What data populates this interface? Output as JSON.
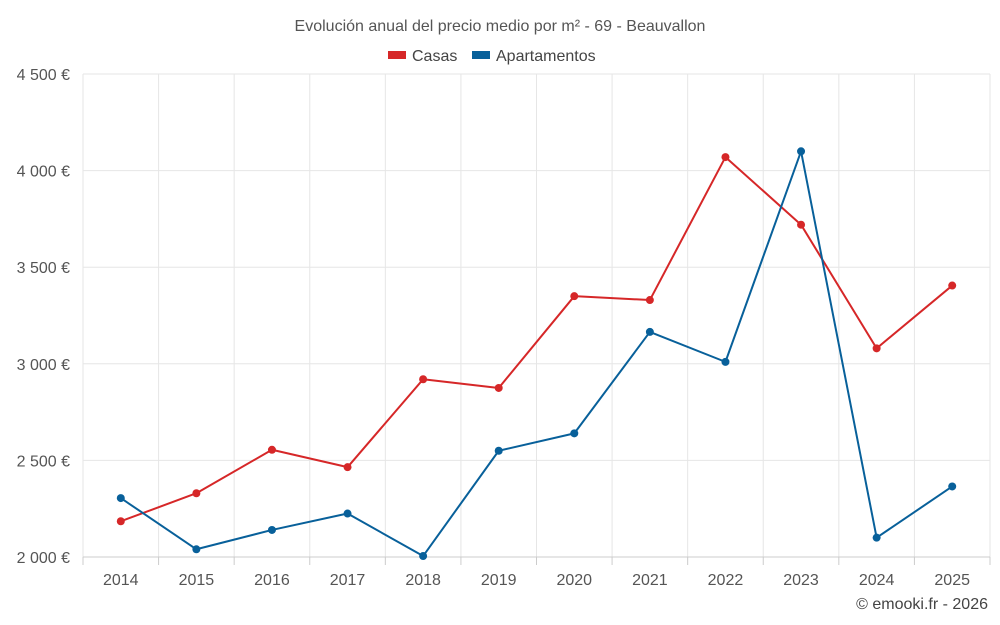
{
  "chart_data": {
    "type": "line",
    "title": "Evolución anual del precio medio por m² - 69 - Beauvallon",
    "categories": [
      "2014",
      "2015",
      "2016",
      "2017",
      "2018",
      "2019",
      "2020",
      "2021",
      "2022",
      "2023",
      "2024",
      "2025"
    ],
    "series": [
      {
        "name": "Casas",
        "color": "#d62728",
        "values": [
          2185,
          2330,
          2555,
          2465,
          2920,
          2875,
          3350,
          3330,
          4070,
          3720,
          3080,
          3405
        ]
      },
      {
        "name": "Apartamentos",
        "color": "#08609a",
        "values": [
          2305,
          2040,
          2140,
          2225,
          2005,
          2550,
          2640,
          3165,
          3010,
          4100,
          2100,
          2365
        ]
      }
    ],
    "ylim": [
      2000,
      4500
    ],
    "yticks": [
      2000,
      2500,
      3000,
      3500,
      4000,
      4500
    ],
    "ytick_labels": [
      "2 000 €",
      "2 500 €",
      "3 000 €",
      "3 500 €",
      "4 000 €",
      "4 500 €"
    ],
    "xlabel": "",
    "ylabel": "",
    "grid": true,
    "legend_position": "top-center"
  },
  "credit": "© emooki.fr - 2026"
}
